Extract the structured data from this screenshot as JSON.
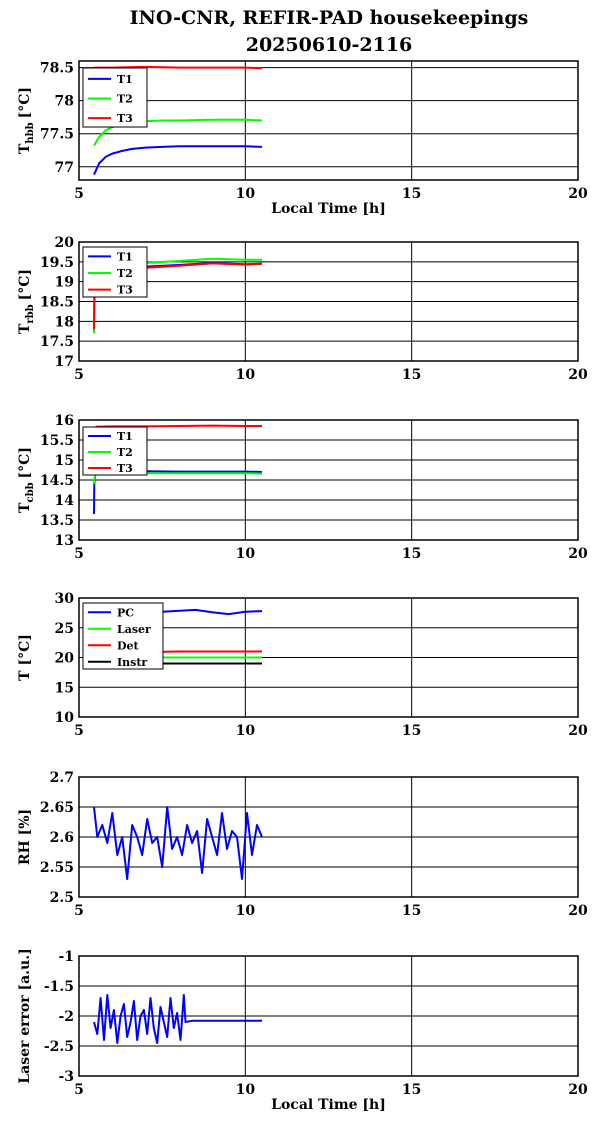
{
  "figure": {
    "title_line1": "INO-CNR, REFIR-PAD housekeepings",
    "title_line2": "20250610-2116"
  },
  "chart_data": [
    {
      "type": "line",
      "ylabel_main": "T",
      "ylabel_sub": "hbb",
      "ylabel_unit": "[°C]",
      "xlabel": "Local Time [h]",
      "xlim": [
        5,
        20
      ],
      "ylim": [
        76.8,
        78.6
      ],
      "xticks": [
        "5",
        "10",
        "15",
        "20"
      ],
      "yticks": [
        "77",
        "77.5",
        "78",
        "78.5"
      ],
      "grid": true,
      "legend": "top-left",
      "series": [
        {
          "name": "T1",
          "color": "#0000ff",
          "x": [
            5.45,
            5.6,
            5.8,
            6.0,
            6.3,
            6.6,
            7.0,
            7.5,
            8.0,
            9.0,
            10.0,
            10.5
          ],
          "y": [
            76.88,
            77.05,
            77.15,
            77.2,
            77.24,
            77.27,
            77.29,
            77.3,
            77.31,
            77.31,
            77.31,
            77.3
          ]
        },
        {
          "name": "T2",
          "color": "#00ff00",
          "x": [
            5.45,
            5.6,
            5.8,
            6.0,
            6.3,
            6.6,
            7.0,
            7.5,
            8.0,
            9.0,
            10.0,
            10.5
          ],
          "y": [
            77.32,
            77.45,
            77.55,
            77.6,
            77.64,
            77.67,
            77.69,
            77.7,
            77.7,
            77.71,
            77.71,
            77.7
          ]
        },
        {
          "name": "T3",
          "color": "#ff0000",
          "x": [
            5.45,
            6.0,
            7.0,
            8.0,
            9.0,
            10.0,
            10.5
          ],
          "y": [
            78.5,
            78.5,
            78.51,
            78.5,
            78.5,
            78.5,
            78.49
          ]
        }
      ]
    },
    {
      "type": "line",
      "ylabel_main": "T",
      "ylabel_sub": "rbb",
      "ylabel_unit": "[°C]",
      "xlabel": "",
      "xlim": [
        5,
        20
      ],
      "ylim": [
        17,
        20
      ],
      "xticks": [
        "5",
        "10",
        "15",
        "20"
      ],
      "yticks": [
        "17",
        "17.5",
        "18",
        "18.5",
        "19",
        "19.5",
        "20"
      ],
      "grid": true,
      "legend": "top-left",
      "series": [
        {
          "name": "T1",
          "color": "#0000ff",
          "x": [
            5.45,
            5.46,
            5.5,
            6.0,
            7.0,
            8.0,
            9.0,
            10.0,
            10.5
          ],
          "y": [
            17.75,
            18.5,
            19.3,
            19.35,
            19.38,
            19.42,
            19.47,
            19.44,
            19.45
          ]
        },
        {
          "name": "T2",
          "color": "#00ff00",
          "x": [
            5.45,
            5.46,
            5.5,
            6.0,
            7.0,
            8.0,
            9.0,
            10.0,
            10.5
          ],
          "y": [
            17.7,
            18.5,
            19.38,
            19.43,
            19.47,
            19.52,
            19.58,
            19.55,
            19.55
          ]
        },
        {
          "name": "T3",
          "color": "#ff0000",
          "x": [
            5.45,
            5.46,
            5.5,
            6.0,
            7.0,
            8.0,
            9.0,
            10.0,
            10.5
          ],
          "y": [
            17.8,
            18.5,
            19.28,
            19.32,
            19.35,
            19.4,
            19.46,
            19.43,
            19.45
          ]
        }
      ]
    },
    {
      "type": "line",
      "ylabel_main": "T",
      "ylabel_sub": "cbb",
      "ylabel_unit": "[°C]",
      "xlabel": "",
      "xlim": [
        5,
        20
      ],
      "ylim": [
        13,
        16
      ],
      "xticks": [
        "5",
        "10",
        "15",
        "20"
      ],
      "yticks": [
        "13",
        "13.5",
        "14",
        "14.5",
        "15",
        "15.5",
        "16"
      ],
      "grid": true,
      "legend": "top-left",
      "series": [
        {
          "name": "T1",
          "color": "#0000ff",
          "x": [
            5.45,
            5.46,
            5.5,
            6.0,
            7.0,
            8.0,
            9.0,
            10.0,
            10.5
          ],
          "y": [
            13.65,
            14.4,
            14.72,
            14.72,
            14.72,
            14.71,
            14.71,
            14.71,
            14.7
          ]
        },
        {
          "name": "T2",
          "color": "#00ff00",
          "x": [
            5.45,
            5.46,
            5.5,
            6.0,
            7.0,
            8.0,
            9.0,
            10.0,
            10.5
          ],
          "y": [
            14.4,
            14.5,
            14.68,
            14.68,
            14.67,
            14.67,
            14.67,
            14.67,
            14.66
          ]
        },
        {
          "name": "T3",
          "color": "#ff0000",
          "x": [
            5.5,
            6.0,
            7.0,
            8.0,
            9.0,
            10.0,
            10.5
          ],
          "y": [
            15.83,
            15.84,
            15.84,
            15.85,
            15.86,
            15.85,
            15.85
          ]
        }
      ]
    },
    {
      "type": "line",
      "ylabel_main": "T [°C]",
      "xlabel": "",
      "xlim": [
        5,
        20
      ],
      "ylim": [
        10,
        30
      ],
      "xticks": [
        "5",
        "10",
        "15",
        "20"
      ],
      "yticks": [
        "10",
        "15",
        "20",
        "25",
        "30"
      ],
      "grid": true,
      "legend": "top-left",
      "series": [
        {
          "name": "PC",
          "color": "#0000ff",
          "x": [
            5.5,
            6.5,
            7.5,
            8.5,
            9.0,
            9.5,
            10.0,
            10.5
          ],
          "y": [
            27.6,
            27.6,
            27.7,
            28.0,
            27.6,
            27.3,
            27.7,
            27.8
          ]
        },
        {
          "name": "Laser",
          "color": "#00ff00",
          "x": [
            5.5,
            7.0,
            8.0,
            9.0,
            10.0,
            10.5
          ],
          "y": [
            20.0,
            20.0,
            20.0,
            20.0,
            20.0,
            20.0
          ]
        },
        {
          "name": "Det",
          "color": "#ff0000",
          "x": [
            5.5,
            7.0,
            8.0,
            9.0,
            10.0,
            10.5
          ],
          "y": [
            20.9,
            20.9,
            21.0,
            21.0,
            21.0,
            21.0
          ]
        },
        {
          "name": "Instr",
          "color": "#000000",
          "x": [
            5.5,
            7.0,
            8.0,
            9.0,
            10.0,
            10.5
          ],
          "y": [
            19.0,
            19.0,
            19.0,
            19.0,
            19.0,
            19.0
          ]
        }
      ]
    },
    {
      "type": "line",
      "ylabel_main": "RH [%]",
      "xlabel": "",
      "xlim": [
        5,
        20
      ],
      "ylim": [
        2.5,
        2.7
      ],
      "xticks": [
        "5",
        "10",
        "15",
        "20"
      ],
      "yticks": [
        "2.5",
        "2.55",
        "2.6",
        "2.65",
        "2.7"
      ],
      "grid": true,
      "legend": "none",
      "series": [
        {
          "color": "#0000ff",
          "x": [
            5.45,
            5.55,
            5.7,
            5.85,
            6.0,
            6.15,
            6.3,
            6.45,
            6.6,
            6.75,
            6.9,
            7.05,
            7.2,
            7.35,
            7.5,
            7.65,
            7.8,
            7.95,
            8.1,
            8.25,
            8.4,
            8.55,
            8.7,
            8.85,
            9.0,
            9.15,
            9.3,
            9.45,
            9.6,
            9.75,
            9.9,
            10.05,
            10.2,
            10.35,
            10.5
          ],
          "y": [
            2.65,
            2.6,
            2.62,
            2.59,
            2.64,
            2.57,
            2.6,
            2.53,
            2.62,
            2.6,
            2.57,
            2.63,
            2.59,
            2.6,
            2.55,
            2.65,
            2.58,
            2.6,
            2.57,
            2.62,
            2.59,
            2.61,
            2.54,
            2.63,
            2.6,
            2.57,
            2.64,
            2.58,
            2.61,
            2.6,
            2.53,
            2.64,
            2.57,
            2.62,
            2.6
          ]
        }
      ]
    },
    {
      "type": "line",
      "ylabel_main": "Laser error [a.u.]",
      "xlabel": "Local Time [h]",
      "xlim": [
        5,
        20
      ],
      "ylim": [
        -3,
        -1
      ],
      "xticks": [
        "5",
        "10",
        "15",
        "20"
      ],
      "yticks": [
        "-3",
        "-2.5",
        "-2",
        "-1.5",
        "-1"
      ],
      "grid": true,
      "legend": "none",
      "series": [
        {
          "color": "#0000ff",
          "x": [
            5.45,
            5.55,
            5.65,
            5.75,
            5.85,
            5.95,
            6.05,
            6.15,
            6.25,
            6.35,
            6.45,
            6.55,
            6.65,
            6.75,
            6.85,
            6.95,
            7.05,
            7.15,
            7.25,
            7.35,
            7.45,
            7.55,
            7.65,
            7.75,
            7.85,
            7.95,
            8.05,
            8.15,
            8.2,
            8.4,
            9.0,
            9.5,
            10.0,
            10.5
          ],
          "y": [
            -2.1,
            -2.3,
            -1.7,
            -2.4,
            -1.65,
            -2.2,
            -1.9,
            -2.45,
            -2.0,
            -1.8,
            -2.35,
            -2.1,
            -1.75,
            -2.4,
            -2.0,
            -1.9,
            -2.3,
            -1.7,
            -2.2,
            -2.45,
            -1.85,
            -2.1,
            -2.35,
            -1.7,
            -2.2,
            -1.95,
            -2.4,
            -1.65,
            -2.1,
            -2.08,
            -2.08,
            -2.08,
            -2.08,
            -2.08
          ]
        }
      ]
    }
  ]
}
